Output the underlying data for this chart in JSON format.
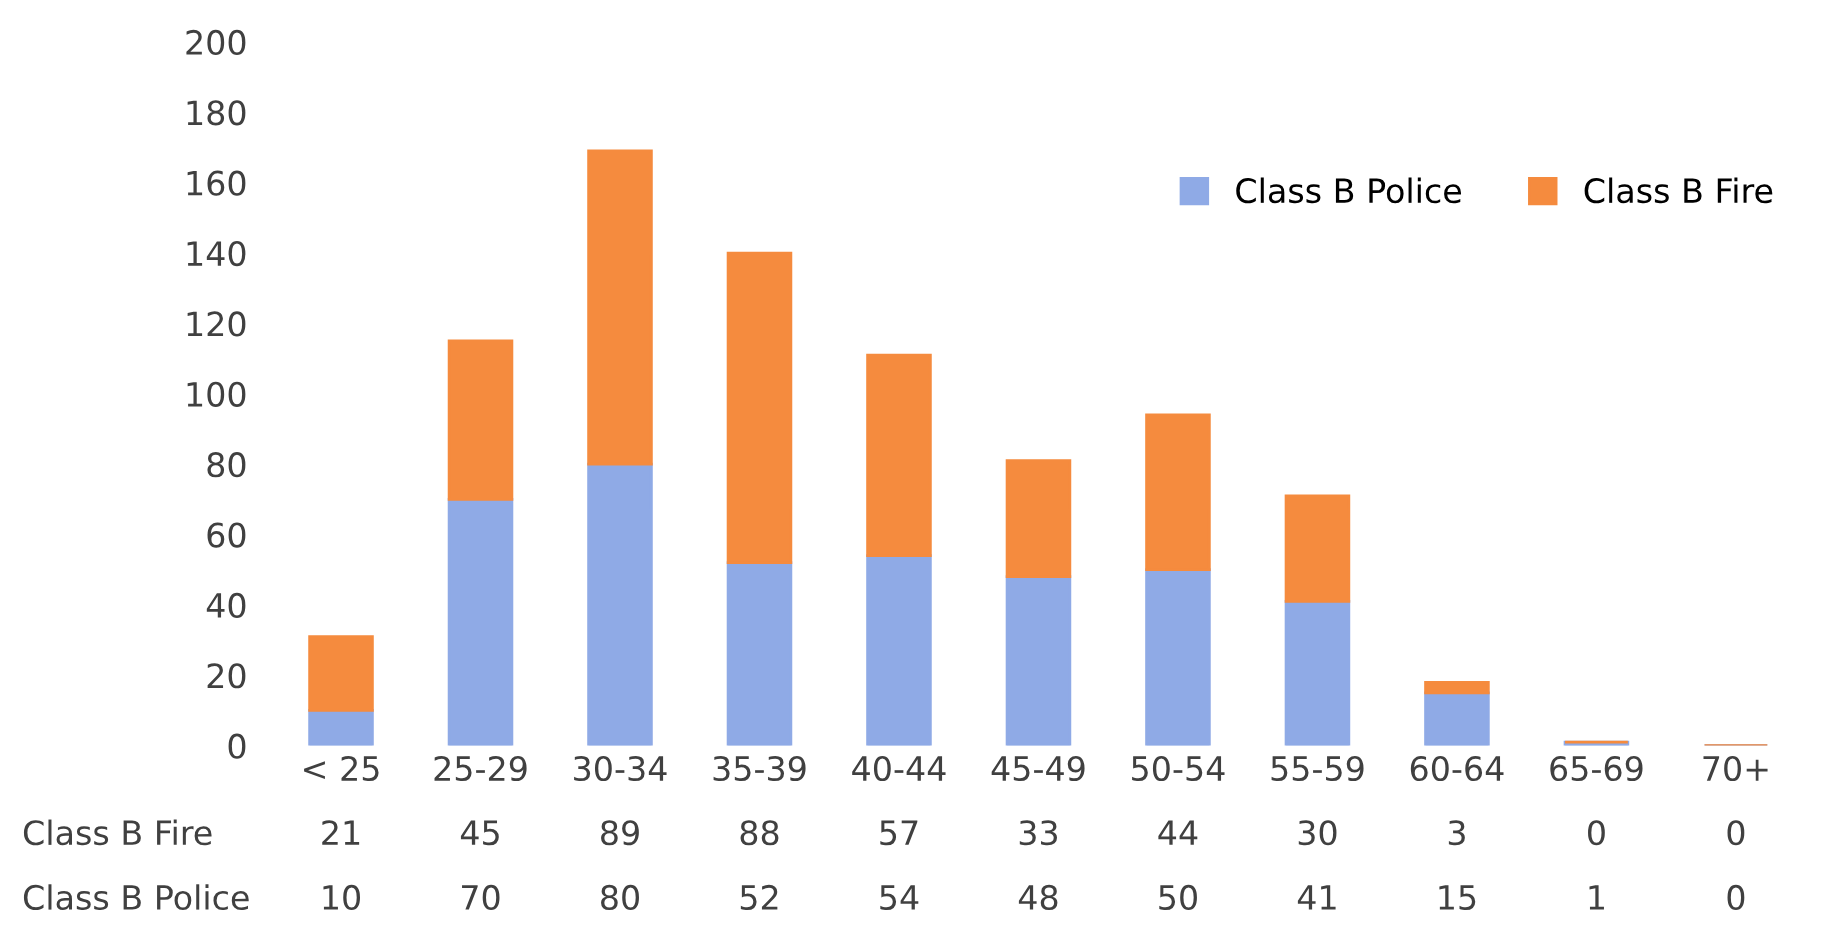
{
  "chart_data": {
    "type": "bar",
    "stacked": true,
    "categories": [
      "< 25",
      "25-29",
      "30-34",
      "35-39",
      "40-44",
      "45-49",
      "50-54",
      "55-59",
      "60-64",
      "65-69",
      "70+"
    ],
    "series": [
      {
        "name": "Class B Police",
        "color": "#8faae6",
        "values": [
          10,
          70,
          80,
          52,
          54,
          48,
          50,
          41,
          15,
          1,
          0
        ]
      },
      {
        "name": "Class B Fire",
        "color": "#f58b3e",
        "values": [
          21,
          45,
          89,
          88,
          57,
          33,
          44,
          30,
          3,
          0,
          0
        ]
      }
    ],
    "ylim": [
      0,
      200
    ],
    "yticks": [
      0,
      20,
      40,
      60,
      80,
      100,
      120,
      140,
      160,
      180,
      200
    ],
    "data_labels": true,
    "legend": "top right",
    "grid": false
  }
}
